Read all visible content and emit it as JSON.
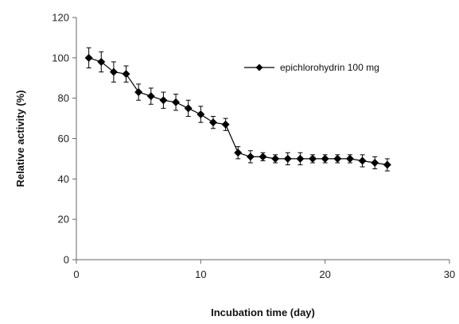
{
  "chart_data": {
    "type": "line",
    "xlabel": "Incubation time (day)",
    "ylabel": "Relative activity (%)",
    "xlim": [
      0,
      30
    ],
    "ylim": [
      0,
      120
    ],
    "xticks": [
      0,
      10,
      20,
      30
    ],
    "yticks": [
      0,
      20,
      40,
      60,
      80,
      100,
      120
    ],
    "grid": false,
    "legend_position": "top-right",
    "marker": "diamond",
    "color": "#000000",
    "series": [
      {
        "name": "epichlorohydrin 100 mg",
        "x": [
          1,
          2,
          3,
          4,
          5,
          6,
          7,
          8,
          9,
          10,
          11,
          12,
          13,
          14,
          15,
          16,
          17,
          18,
          19,
          20,
          21,
          22,
          23,
          24,
          25
        ],
        "y": [
          100,
          98,
          93,
          92,
          83,
          81,
          79,
          78,
          75,
          72,
          68,
          67,
          53,
          51,
          51,
          50,
          50,
          50,
          50,
          50,
          50,
          50,
          49,
          48,
          47
        ],
        "error": [
          5,
          5,
          5,
          4,
          4,
          4,
          4,
          4,
          4,
          4,
          3,
          3,
          3,
          3,
          2,
          2,
          3,
          3,
          2,
          2,
          2,
          2,
          3,
          3,
          3
        ]
      }
    ]
  }
}
